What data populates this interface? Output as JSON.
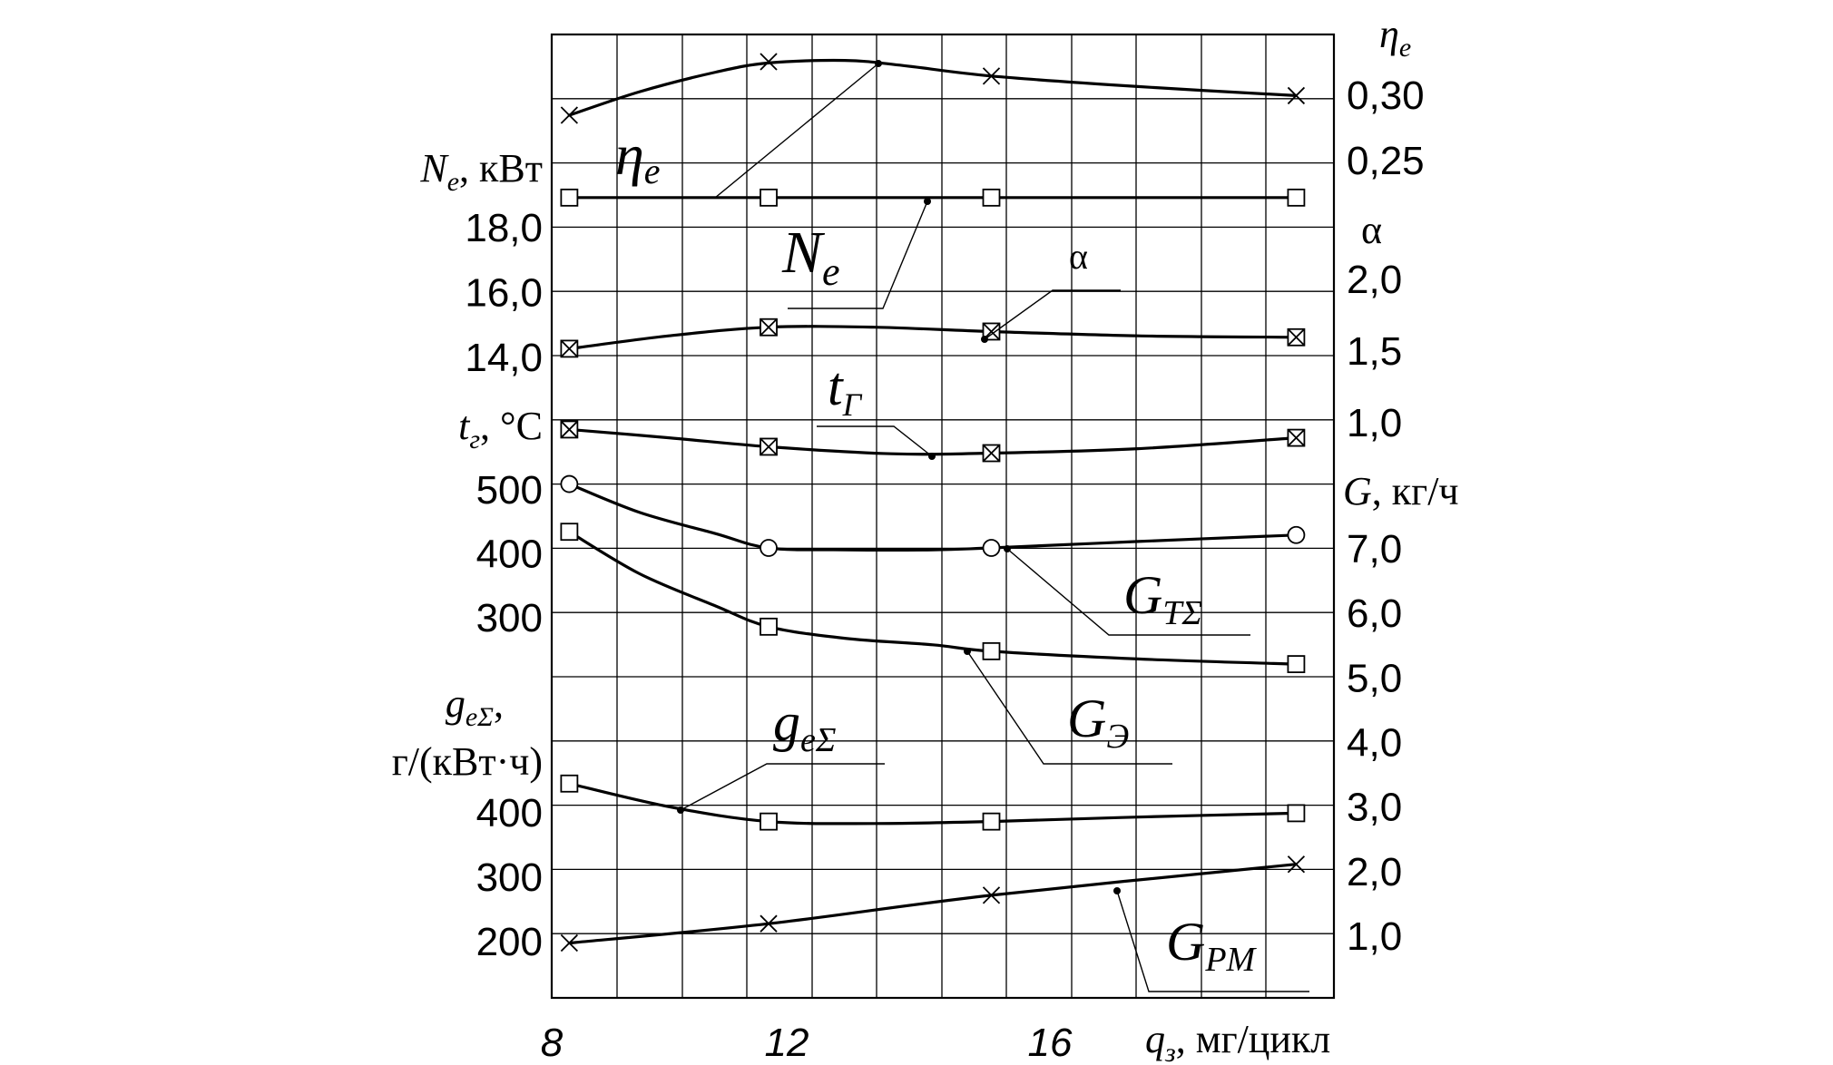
{
  "chart_data": {
    "type": "line",
    "x_axis": {
      "label_symbol": "q",
      "label_sub": "з",
      "label_unit": ", мг/цикл",
      "ticks": [
        "8",
        "12",
        "16"
      ],
      "range": [
        8,
        21.6
      ]
    },
    "left_axes": [
      {
        "id": "Ne",
        "title_symbol": "N",
        "title_sub": "e",
        "title_unit": ", кВт",
        "ticks": [
          {
            "label": "18,0",
            "value": 18.0
          },
          {
            "label": "16,0",
            "value": 16.0
          },
          {
            "label": "14,0",
            "value": 14.0
          }
        ]
      },
      {
        "id": "tg",
        "title_symbol": "t",
        "title_sub": "г",
        "title_unit": ", °С",
        "ticks": [
          {
            "label": "500",
            "value": 500
          },
          {
            "label": "400",
            "value": 400
          },
          {
            "label": "300",
            "value": 300
          }
        ]
      },
      {
        "id": "ge",
        "title_symbol": "g",
        "title_sub": "eΣ",
        "title_suffix": ",",
        "title_unit_line2": "г/(кВт·ч)",
        "ticks": [
          {
            "label": "400",
            "value": 400
          },
          {
            "label": "300",
            "value": 300
          },
          {
            "label": "200",
            "value": 200
          }
        ]
      }
    ],
    "right_axes": [
      {
        "id": "eta",
        "title_symbol": "η",
        "title_sub": "e",
        "ticks": [
          {
            "label": "0,30",
            "value": 0.3
          },
          {
            "label": "0,25",
            "value": 0.25
          }
        ]
      },
      {
        "id": "alpha",
        "title_symbol": "α",
        "ticks": [
          {
            "label": "2,0",
            "value": 2.0
          },
          {
            "label": "1,5",
            "value": 1.5
          },
          {
            "label": "1,0",
            "value": 1.0
          }
        ]
      },
      {
        "id": "G",
        "title_symbol": "G",
        "title_unit": ", кг/ч",
        "ticks": [
          {
            "label": "7,0",
            "value": 7.0
          },
          {
            "label": "6,0",
            "value": 6.0
          },
          {
            "label": "5,0",
            "value": 5.0
          },
          {
            "label": "4,0",
            "value": 4.0
          },
          {
            "label": "3,0",
            "value": 3.0
          },
          {
            "label": "2,0",
            "value": 2.0
          },
          {
            "label": "1,0",
            "value": 1.0
          }
        ]
      }
    ],
    "series": [
      {
        "id": "eta_e",
        "symbol": "η",
        "sub": "e",
        "axis": "eta",
        "marker": "x",
        "points": [
          [
            8.3,
            0.284
          ],
          [
            11.7,
            0.325
          ],
          [
            15.5,
            0.314
          ],
          [
            20.7,
            0.299
          ]
        ],
        "curve": [
          [
            8.3,
            0.284
          ],
          [
            9.5,
            0.302
          ],
          [
            10.8,
            0.317
          ],
          [
            11.7,
            0.324
          ],
          [
            13.0,
            0.326
          ],
          [
            14.0,
            0.322
          ],
          [
            15.5,
            0.314
          ],
          [
            18.0,
            0.306
          ],
          [
            20.7,
            0.299
          ]
        ]
      },
      {
        "id": "N_e",
        "symbol": "N",
        "sub": "e",
        "axis": "Ne",
        "marker": "square",
        "points": [
          [
            8.3,
            18.9
          ],
          [
            11.7,
            18.9
          ],
          [
            15.5,
            18.9
          ],
          [
            20.7,
            18.9
          ]
        ],
        "curve": [
          [
            8.3,
            18.9
          ],
          [
            20.7,
            18.9
          ]
        ]
      },
      {
        "id": "alpha",
        "symbol": "α",
        "axis": "alpha",
        "marker": "boxx",
        "points": [
          [
            8.3,
            1.51
          ],
          [
            11.7,
            1.66
          ],
          [
            15.5,
            1.63
          ],
          [
            20.7,
            1.59
          ]
        ],
        "curve": [
          [
            8.3,
            1.51
          ],
          [
            10.0,
            1.6
          ],
          [
            11.7,
            1.66
          ],
          [
            13.5,
            1.66
          ],
          [
            15.5,
            1.63
          ],
          [
            18.0,
            1.6
          ],
          [
            20.7,
            1.59
          ]
        ]
      },
      {
        "id": "t_g",
        "symbol": "t",
        "sub": "Г",
        "axis": "tg",
        "marker": "boxx",
        "points": [
          [
            8.3,
            593
          ],
          [
            11.7,
            566
          ],
          [
            15.5,
            556
          ],
          [
            20.7,
            580
          ]
        ],
        "curve": [
          [
            8.3,
            593
          ],
          [
            10.0,
            580
          ],
          [
            11.7,
            566
          ],
          [
            13.8,
            555
          ],
          [
            15.5,
            556
          ],
          [
            18.0,
            563
          ],
          [
            20.7,
            580
          ]
        ]
      },
      {
        "id": "G_TS",
        "symbol": "G",
        "sub": "TΣ",
        "axis": "G",
        "marker": "circle",
        "points": [
          [
            8.3,
            7.99
          ],
          [
            11.7,
            7.0
          ],
          [
            15.5,
            7.0
          ],
          [
            20.7,
            7.2
          ]
        ],
        "curve": [
          [
            8.3,
            7.99
          ],
          [
            9.5,
            7.55
          ],
          [
            10.8,
            7.22
          ],
          [
            11.7,
            7.0
          ],
          [
            13.0,
            6.97
          ],
          [
            14.5,
            6.97
          ],
          [
            15.5,
            7.0
          ],
          [
            18.0,
            7.1
          ],
          [
            20.7,
            7.2
          ]
        ]
      },
      {
        "id": "G_E",
        "symbol": "G",
        "sub": "Э",
        "axis": "G",
        "marker": "square",
        "points": [
          [
            8.3,
            7.25
          ],
          [
            11.7,
            5.78
          ],
          [
            15.5,
            5.4
          ],
          [
            20.7,
            5.2
          ]
        ],
        "curve": [
          [
            8.3,
            7.25
          ],
          [
            9.5,
            6.6
          ],
          [
            10.8,
            6.1
          ],
          [
            11.7,
            5.78
          ],
          [
            13.0,
            5.6
          ],
          [
            14.5,
            5.5
          ],
          [
            15.5,
            5.4
          ],
          [
            18.0,
            5.28
          ],
          [
            20.7,
            5.2
          ]
        ]
      },
      {
        "id": "g_eS",
        "symbol": "g",
        "sub": "eΣ",
        "axis": "ge",
        "marker": "square",
        "points": [
          [
            8.3,
            444
          ],
          [
            11.7,
            385
          ],
          [
            15.5,
            385
          ],
          [
            20.7,
            398
          ]
        ],
        "curve": [
          [
            8.3,
            444
          ],
          [
            10.0,
            408
          ],
          [
            11.7,
            385
          ],
          [
            13.5,
            382
          ],
          [
            15.5,
            385
          ],
          [
            18.0,
            392
          ],
          [
            20.7,
            398
          ]
        ]
      },
      {
        "id": "G_PM",
        "symbol": "G",
        "sub": "PM",
        "axis": "G",
        "marker": "x",
        "points": [
          [
            8.3,
            0.88
          ],
          [
            11.7,
            1.18
          ],
          [
            15.5,
            1.62
          ],
          [
            20.7,
            2.1
          ]
        ],
        "curve": [
          [
            8.3,
            0.88
          ],
          [
            11.7,
            1.18
          ],
          [
            15.5,
            1.62
          ],
          [
            20.7,
            2.1
          ]
        ]
      }
    ]
  }
}
